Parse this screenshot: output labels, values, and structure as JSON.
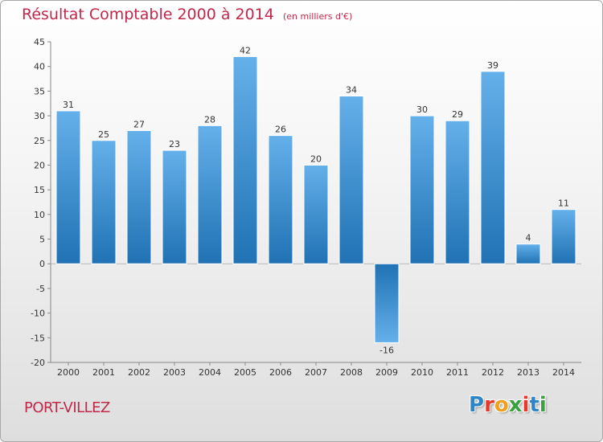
{
  "title": {
    "main": "Résultat Comptable 2000 à 2014",
    "subtitle": "(en milliers d'€)"
  },
  "place_name": "PORT-VILLEZ",
  "logo": {
    "letters": [
      "P",
      "r",
      "o",
      "x",
      "i",
      "t",
      "i"
    ],
    "colors": [
      "#2e86c8",
      "#e8382a",
      "#f0a020",
      "#3aa040",
      "#e8382a",
      "#2e86c8",
      "#3aa040"
    ]
  },
  "colors": {
    "title": "#c0284a",
    "bar_light": "#64b0ea",
    "bar_dark": "#2072b4"
  },
  "chart_data": {
    "type": "bar",
    "categories": [
      "2000",
      "2001",
      "2002",
      "2003",
      "2004",
      "2005",
      "2006",
      "2007",
      "2008",
      "2009",
      "2010",
      "2011",
      "2012",
      "2013",
      "2014"
    ],
    "values": [
      31,
      25,
      27,
      23,
      28,
      42,
      26,
      20,
      34,
      -16,
      30,
      29,
      39,
      4,
      11
    ],
    "value_labels": [
      "31",
      "25",
      "27",
      "23",
      "28",
      "42",
      "26",
      "20",
      "34",
      "-16",
      "30",
      "29",
      "39",
      "4",
      "11"
    ],
    "ylim": [
      -20,
      45
    ],
    "yticks": [
      -20,
      -15,
      -10,
      -5,
      0,
      5,
      10,
      15,
      20,
      25,
      30,
      35,
      40,
      45
    ],
    "ytick_labels": [
      "-20",
      "-15",
      "-10",
      "-5",
      "0",
      "5",
      "10",
      "15",
      "20",
      "25",
      "30",
      "35",
      "40",
      "45"
    ],
    "grid": false,
    "title": "Résultat Comptable 2000 à 2014",
    "xlabel": "",
    "ylabel": ""
  }
}
